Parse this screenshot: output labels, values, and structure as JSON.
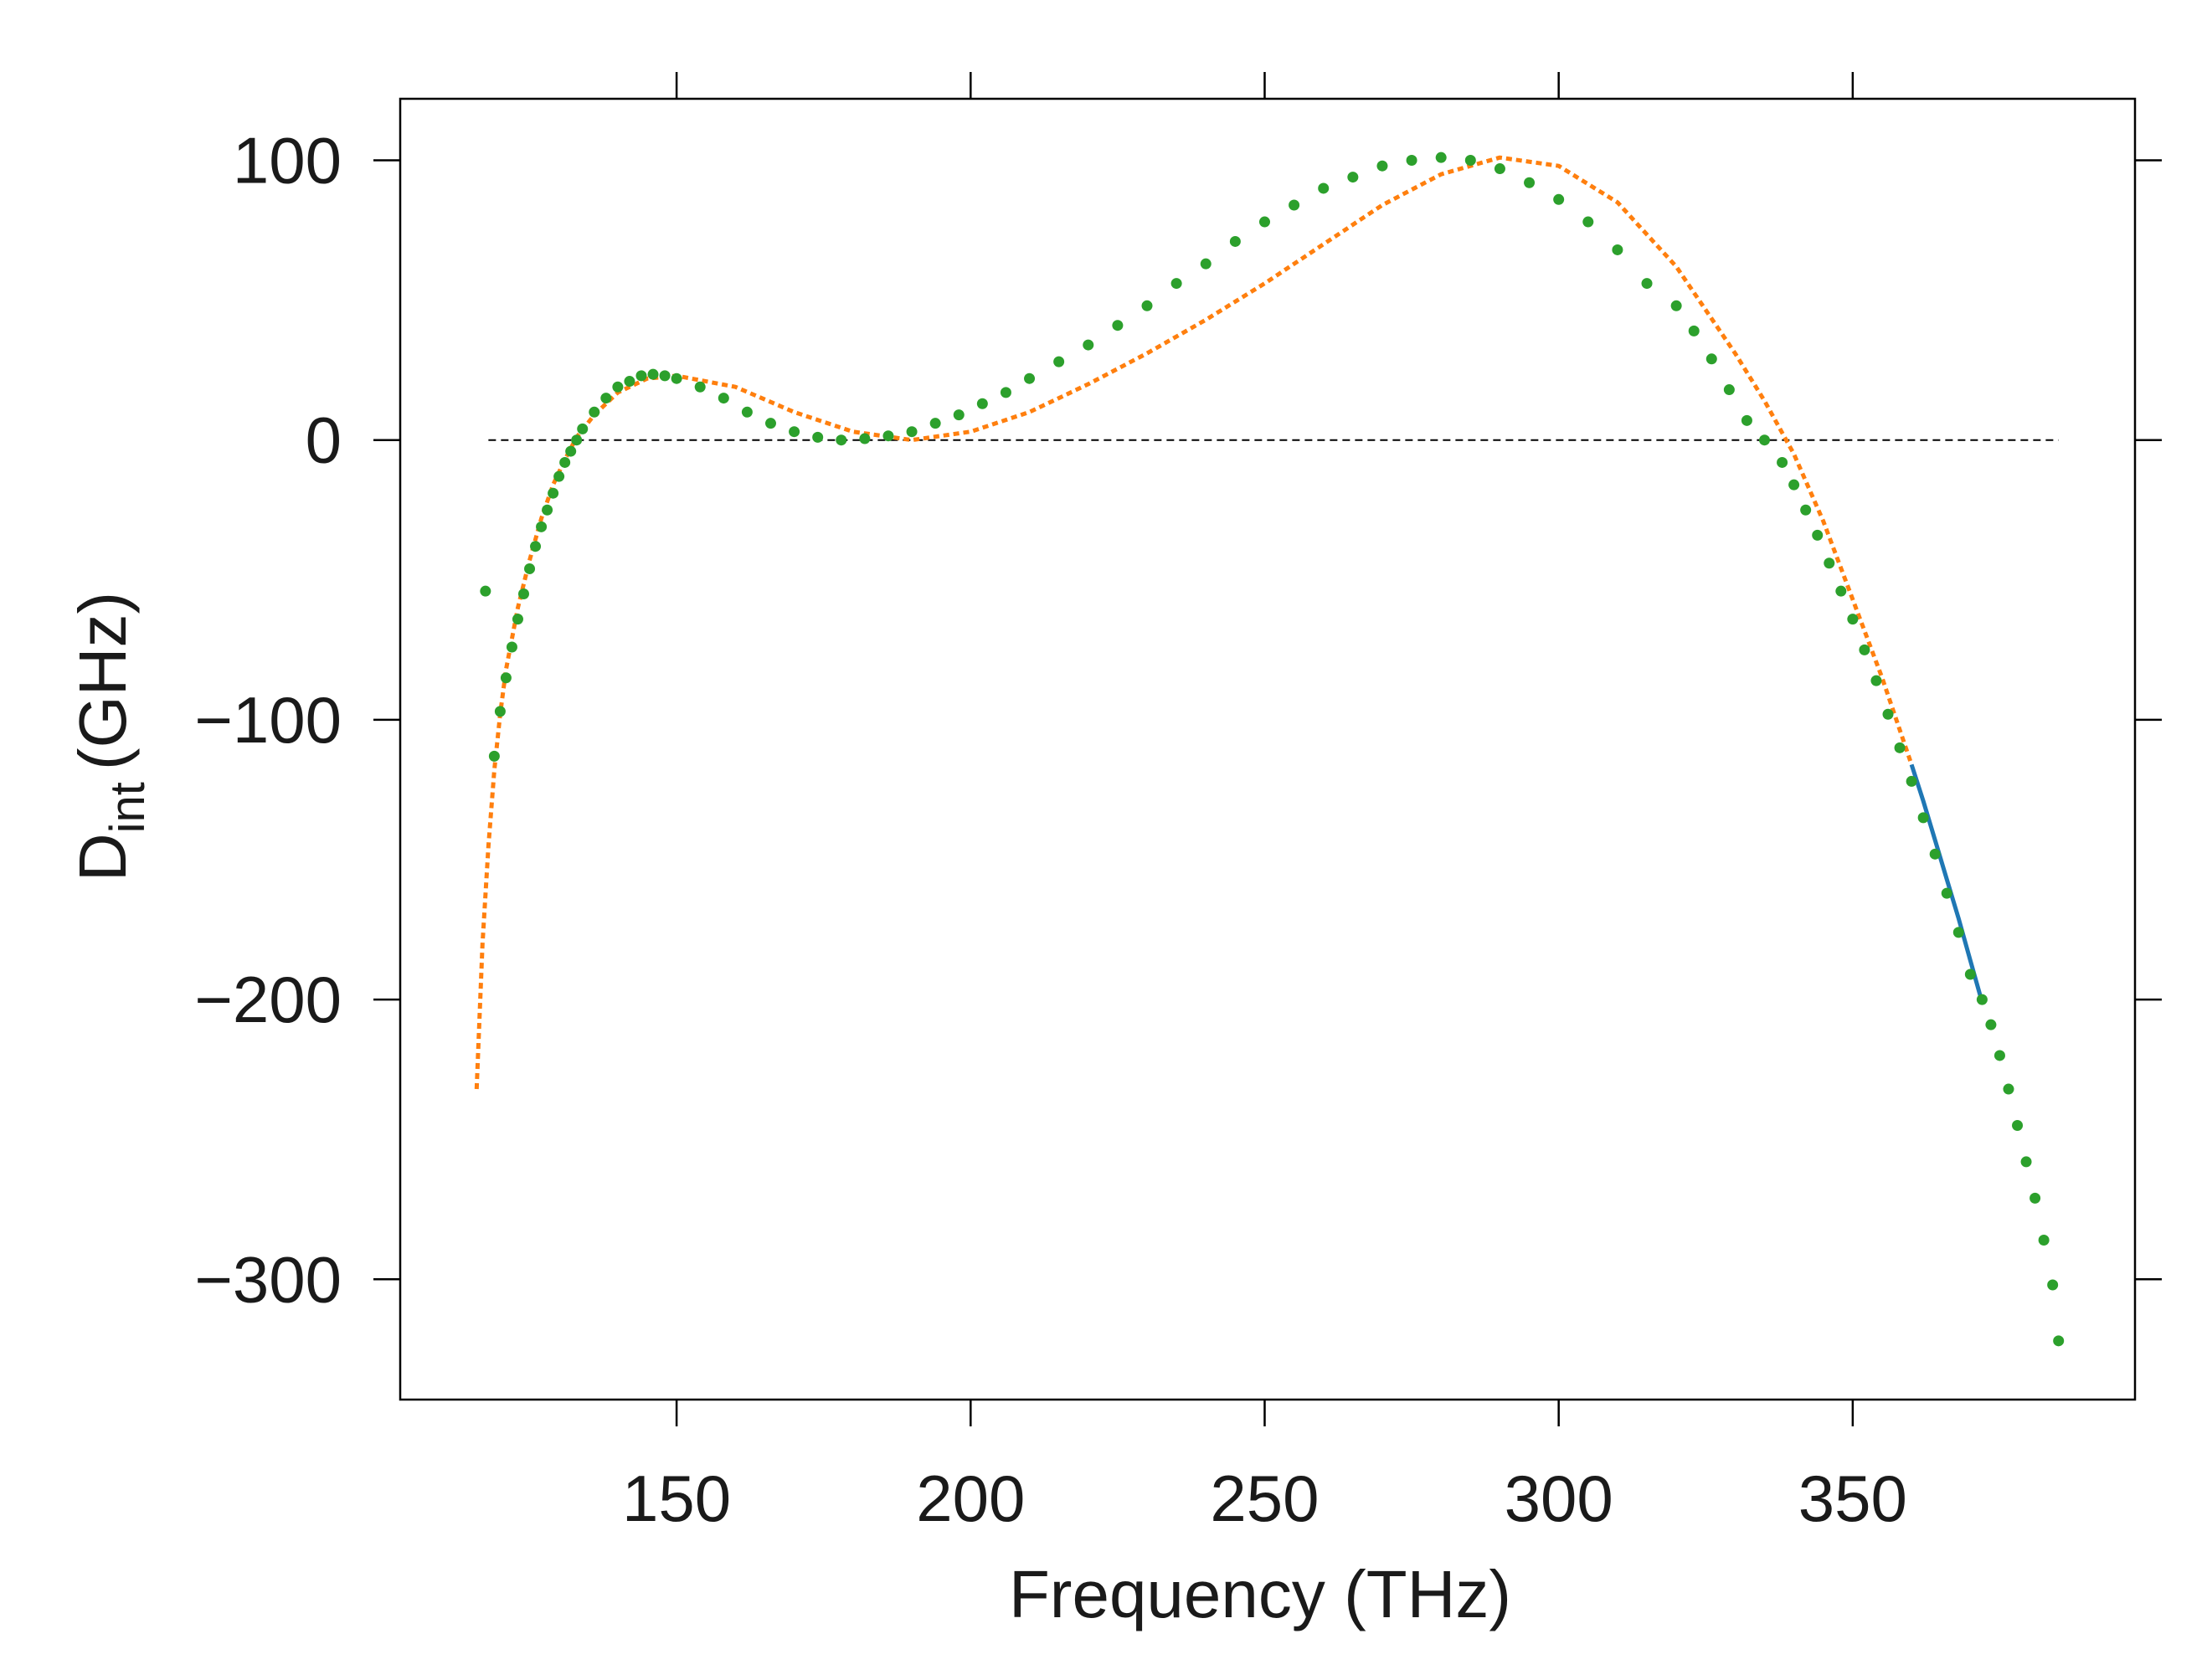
{
  "chart_data": {
    "type": "line",
    "title": "",
    "xlabel": "Frequency (THz)",
    "ylabel_main": "D",
    "ylabel_sub": "int",
    "ylabel_unit": "(GHz)",
    "xlim": [
      103,
      398
    ],
    "ylim": [
      -343,
      122
    ],
    "x_ticks": [
      150,
      200,
      250,
      300,
      350
    ],
    "y_ticks": [
      100,
      0,
      -100,
      -200,
      -300
    ],
    "y_tick_labels": [
      "100",
      "0",
      "−100",
      "−200",
      "−300"
    ],
    "grid": false,
    "legend": "none",
    "colors": {
      "measured_points": "#2ca02c",
      "fit_dashed": "#ff7f0e",
      "fit_solid": "#1f77b4",
      "zero_line": "#000000"
    },
    "zero_line": {
      "x": [
        118,
        385
      ],
      "y": [
        0,
        0
      ]
    },
    "series": [
      {
        "style": "dotted-line",
        "color": "#ff7f0e",
        "x": [
          116,
          117,
          118,
          119,
          120,
          121,
          123,
          125,
          127,
          129,
          131,
          133,
          136,
          140,
          145,
          150,
          160,
          170,
          180,
          190,
          200,
          210,
          220,
          230,
          240,
          250,
          260,
          270,
          280,
          290,
          300,
          310,
          320,
          330,
          335,
          340,
          345,
          350,
          355,
          360
        ],
        "y": [
          -232,
          -180,
          -145,
          -118,
          -98,
          -82,
          -60,
          -43,
          -28,
          -16,
          -7,
          1,
          9,
          17,
          22,
          23,
          19,
          10,
          3,
          0,
          3,
          10,
          20,
          31,
          43,
          56,
          70,
          84,
          95,
          101,
          98,
          85,
          62,
          31,
          14,
          -5,
          -29,
          -57,
          -85,
          -116
        ]
      },
      {
        "style": "line",
        "color": "#1f77b4",
        "x": [
          360,
          362,
          364,
          366,
          368,
          370,
          372
        ],
        "y": [
          -116,
          -129,
          -143,
          -157,
          -171,
          -186,
          -201
        ]
      },
      {
        "style": "points",
        "color": "#2ca02c",
        "x": [
          117.5,
          119,
          120,
          121,
          122,
          123,
          124,
          125,
          126,
          127,
          128,
          129,
          130,
          131,
          132,
          133,
          134,
          136,
          138,
          140,
          142,
          144,
          146,
          148,
          150,
          154,
          158,
          162,
          166,
          170,
          174,
          178,
          182,
          186,
          190,
          194,
          198,
          202,
          206,
          210,
          215,
          220,
          225,
          230,
          235,
          240,
          245,
          250,
          255,
          260,
          265,
          270,
          275,
          280,
          285,
          290,
          295,
          300,
          305,
          310,
          315,
          320,
          323,
          326,
          329,
          332,
          335,
          338,
          340,
          342,
          344,
          346,
          348,
          350,
          352,
          354,
          356,
          358,
          360,
          362,
          364,
          366,
          368,
          370,
          372,
          373.5,
          375,
          376.5,
          378,
          379.5,
          381,
          382.5,
          384,
          385
        ],
        "y": [
          -54,
          -113,
          -97,
          -85,
          -74,
          -64,
          -55,
          -46,
          -38,
          -31,
          -25,
          -19,
          -13,
          -8,
          -4,
          0,
          4,
          10,
          15,
          19,
          21,
          23,
          23.5,
          23,
          22,
          19,
          15,
          10,
          6,
          3,
          1,
          0,
          0.5,
          1.5,
          3,
          6,
          9,
          13,
          17,
          22,
          28,
          34,
          41,
          48,
          56,
          63,
          71,
          78,
          84,
          90,
          94,
          98,
          100,
          101,
          100,
          97,
          92,
          86,
          78,
          68,
          56,
          48,
          39,
          29,
          18,
          7,
          0,
          -8,
          -16,
          -25,
          -34,
          -44,
          -54,
          -64,
          -75,
          -86,
          -98,
          -110,
          -122,
          -135,
          -148,
          -162,
          -176,
          -191,
          -200,
          -209,
          -220,
          -232,
          -245,
          -258,
          -271,
          -286,
          -302,
          -322
        ]
      }
    ]
  }
}
